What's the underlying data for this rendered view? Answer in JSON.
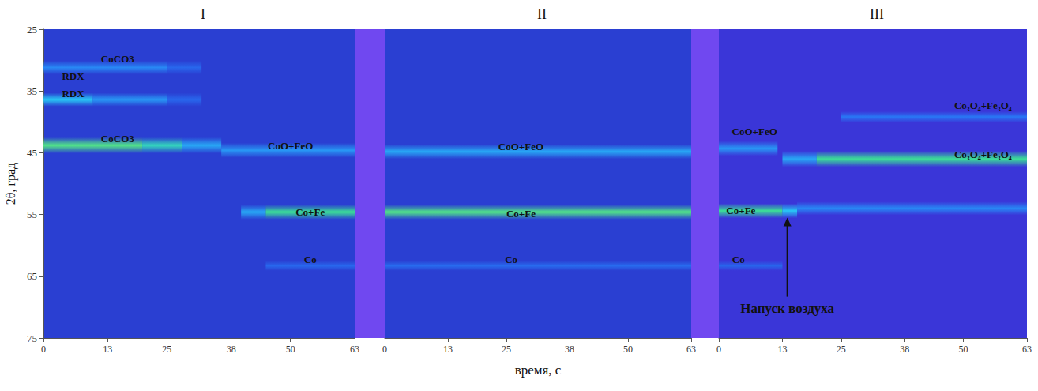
{
  "chart_data": {
    "type": "heatmap",
    "x_label": "время, с",
    "y_label": "2θ, град",
    "ylim": [
      25,
      75
    ],
    "yticks": [
      25,
      35,
      45,
      55,
      65,
      75
    ],
    "color_range": [
      0,
      100
    ],
    "panels": [
      {
        "title": "I",
        "xlim": [
          0,
          63
        ],
        "xticks": [
          0,
          13,
          25,
          38,
          50,
          63
        ],
        "bands": [
          {
            "two_theta": 31.2,
            "width": 2.2,
            "segments": [
              [
                0,
                25,
                35
              ],
              [
                25,
                32,
                20
              ]
            ]
          },
          {
            "two_theta": 36.4,
            "width": 2.2,
            "segments": [
              [
                0,
                10,
                55
              ],
              [
                10,
                25,
                40
              ],
              [
                25,
                32,
                20
              ]
            ]
          },
          {
            "two_theta": 43.8,
            "width": 2.6,
            "segments": [
              [
                0,
                20,
                85
              ],
              [
                20,
                28,
                70
              ],
              [
                28,
                36,
                45
              ]
            ]
          },
          {
            "two_theta": 44.6,
            "width": 2.4,
            "segments": [
              [
                36,
                63,
                40
              ]
            ]
          },
          {
            "two_theta": 54.6,
            "width": 2.4,
            "segments": [
              [
                40,
                45,
                45
              ],
              [
                45,
                63,
                80
              ]
            ]
          },
          {
            "two_theta": 63.3,
            "width": 1.6,
            "segments": [
              [
                45,
                63,
                20
              ]
            ]
          }
        ],
        "labels": [
          {
            "text": "CoCO3",
            "t": 15,
            "two_theta": 29.8
          },
          {
            "text": "RDX",
            "t": 6,
            "two_theta": 32.6
          },
          {
            "text": "RDX",
            "t": 6,
            "two_theta": 35.4
          },
          {
            "text": "CoCO3",
            "t": 15,
            "two_theta": 42.7
          },
          {
            "text": "CoO+FeO",
            "t": 50,
            "two_theta": 43.8
          },
          {
            "text": "Co+Fe",
            "t": 54,
            "two_theta": 54.6
          },
          {
            "text": "Co",
            "t": 54,
            "two_theta": 62.3
          }
        ]
      },
      {
        "title": "II",
        "xlim": [
          0,
          63
        ],
        "xticks": [
          0,
          13,
          25,
          38,
          50,
          63
        ],
        "bands": [
          {
            "two_theta": 44.8,
            "width": 2.4,
            "segments": [
              [
                0,
                63,
                45
              ]
            ]
          },
          {
            "two_theta": 54.6,
            "width": 2.4,
            "segments": [
              [
                0,
                63,
                85
              ]
            ]
          },
          {
            "two_theta": 63.3,
            "width": 1.6,
            "segments": [
              [
                0,
                63,
                22
              ]
            ]
          }
        ],
        "labels": [
          {
            "text": "CoO+FeO",
            "t": 28,
            "two_theta": 44.0
          },
          {
            "text": "Co+Fe",
            "t": 28,
            "two_theta": 54.8
          },
          {
            "text": "Co",
            "t": 26,
            "two_theta": 62.3
          }
        ]
      },
      {
        "title": "III",
        "xlim": [
          0,
          63
        ],
        "xticks": [
          0,
          13,
          25,
          38,
          50,
          63
        ],
        "bands": [
          {
            "two_theta": 44.3,
            "width": 2.4,
            "segments": [
              [
                0,
                12,
                40
              ]
            ]
          },
          {
            "two_theta": 54.4,
            "width": 2.4,
            "segments": [
              [
                0,
                13,
                80
              ],
              [
                13,
                16,
                55
              ]
            ]
          },
          {
            "two_theta": 54.0,
            "width": 2.2,
            "segments": [
              [
                16,
                63,
                35
              ]
            ]
          },
          {
            "two_theta": 63.3,
            "width": 1.6,
            "segments": [
              [
                0,
                13,
                18
              ]
            ]
          },
          {
            "two_theta": 46.0,
            "width": 2.6,
            "segments": [
              [
                13,
                20,
                45
              ],
              [
                20,
                63,
                80
              ]
            ]
          },
          {
            "two_theta": 39.2,
            "width": 1.8,
            "segments": [
              [
                25,
                63,
                30
              ]
            ]
          }
        ],
        "labels": [
          {
            "text": "CoO+FeO",
            "t": 7.3,
            "two_theta": 41.5
          },
          {
            "text": "Co+Fe",
            "t": 4.5,
            "two_theta": 54.3
          },
          {
            "text": "Co",
            "t": 4,
            "two_theta": 62.3
          },
          {
            "text": "Co₃O₄+Fe₃O₄",
            "t": 54,
            "two_theta": 37.4
          },
          {
            "text": "Co₃O₄+Fe₃O₄",
            "t": 54,
            "two_theta": 45.3
          }
        ],
        "annotations": [
          {
            "text": "Напуск воздуха",
            "t": 14,
            "two_theta_tip": 55.5,
            "two_theta_tail": 68.3
          }
        ]
      }
    ]
  }
}
